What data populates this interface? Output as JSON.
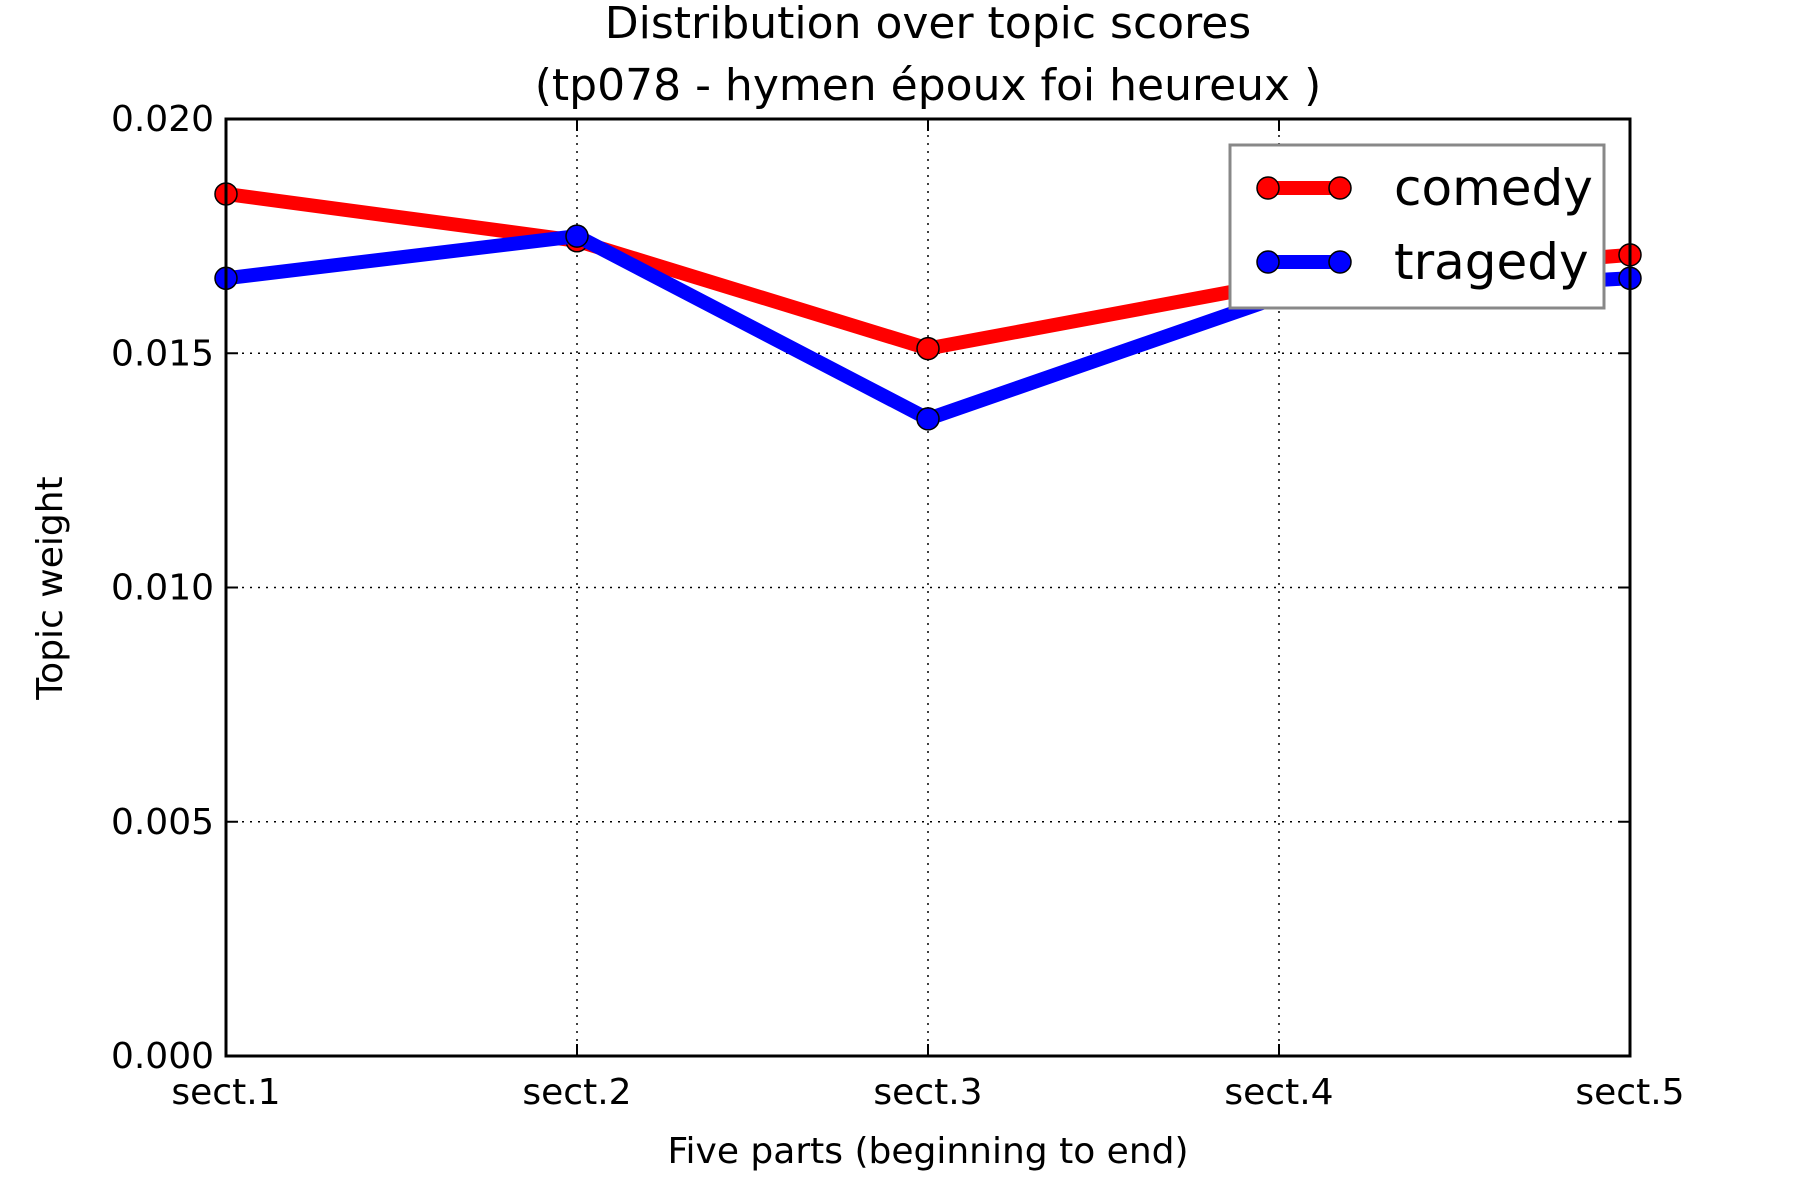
{
  "chart_data": {
    "type": "line",
    "title": [
      "Distribution over topic scores",
      "(tp078 - hymen époux foi heureux )"
    ],
    "xlabel": "Five parts (beginning to end)",
    "ylabel": "Topic weight",
    "categories": [
      "sect.1",
      "sect.2",
      "sect.3",
      "sect.4",
      "sect.5"
    ],
    "ylim": [
      0,
      0.02
    ],
    "yticks": [
      "0.000",
      "0.005",
      "0.010",
      "0.015",
      "0.020"
    ],
    "grid": true,
    "legend_position": "top-right",
    "series": [
      {
        "name": "comedy",
        "color": "#ff0000",
        "values": [
          0.0184,
          0.0174,
          0.0151,
          0.0165,
          0.0171
        ]
      },
      {
        "name": "tragedy",
        "color": "#0000ff",
        "values": [
          0.0166,
          0.0175,
          0.0136,
          0.0162,
          0.0166
        ]
      }
    ]
  }
}
